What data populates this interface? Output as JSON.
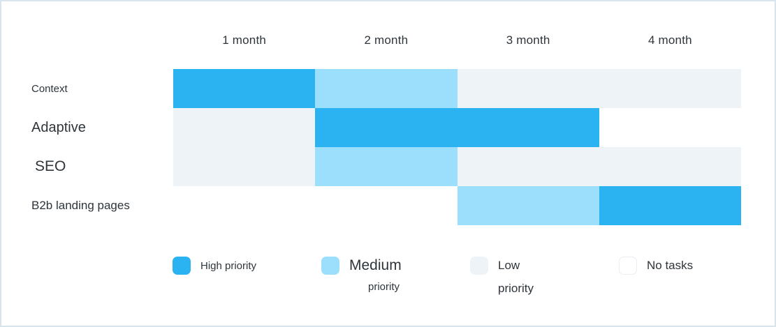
{
  "chart_data": {
    "type": "heatmap",
    "title": "",
    "categories": [
      "1 month",
      "2 month",
      "3 month",
      "4 month"
    ],
    "rows": [
      "Context",
      "Adaptive",
      "SEO",
      "B2b landing pages"
    ],
    "values": [
      [
        "high",
        "medium",
        "low",
        "low"
      ],
      [
        "low",
        "high",
        "high",
        "none"
      ],
      [
        "low",
        "medium",
        "low",
        "low"
      ],
      [
        "none",
        "none",
        "medium",
        "high"
      ]
    ],
    "value_labels": {
      "high": "High priority",
      "medium": "Medium priority",
      "low": "Low priority",
      "none": "No tasks"
    },
    "legend_position": "bottom",
    "grid": false,
    "xlabel": "",
    "ylabel": ""
  },
  "legend": {
    "items": [
      {
        "priority": "high",
        "lines": [
          "High priority"
        ]
      },
      {
        "priority": "medium",
        "lines": [
          "Medium",
          "priority"
        ]
      },
      {
        "priority": "low",
        "lines": [
          "Low",
          "priority"
        ]
      },
      {
        "priority": "none",
        "lines": [
          "No tasks"
        ]
      }
    ]
  },
  "colors": {
    "high": "#2ab3f0",
    "medium": "#9cdffc",
    "low": "#eef3f7",
    "none": "#ffffff",
    "canvas_border": "#d9e5ec",
    "none_swatch_border": "#e9eef2",
    "text": "#2e353b"
  }
}
